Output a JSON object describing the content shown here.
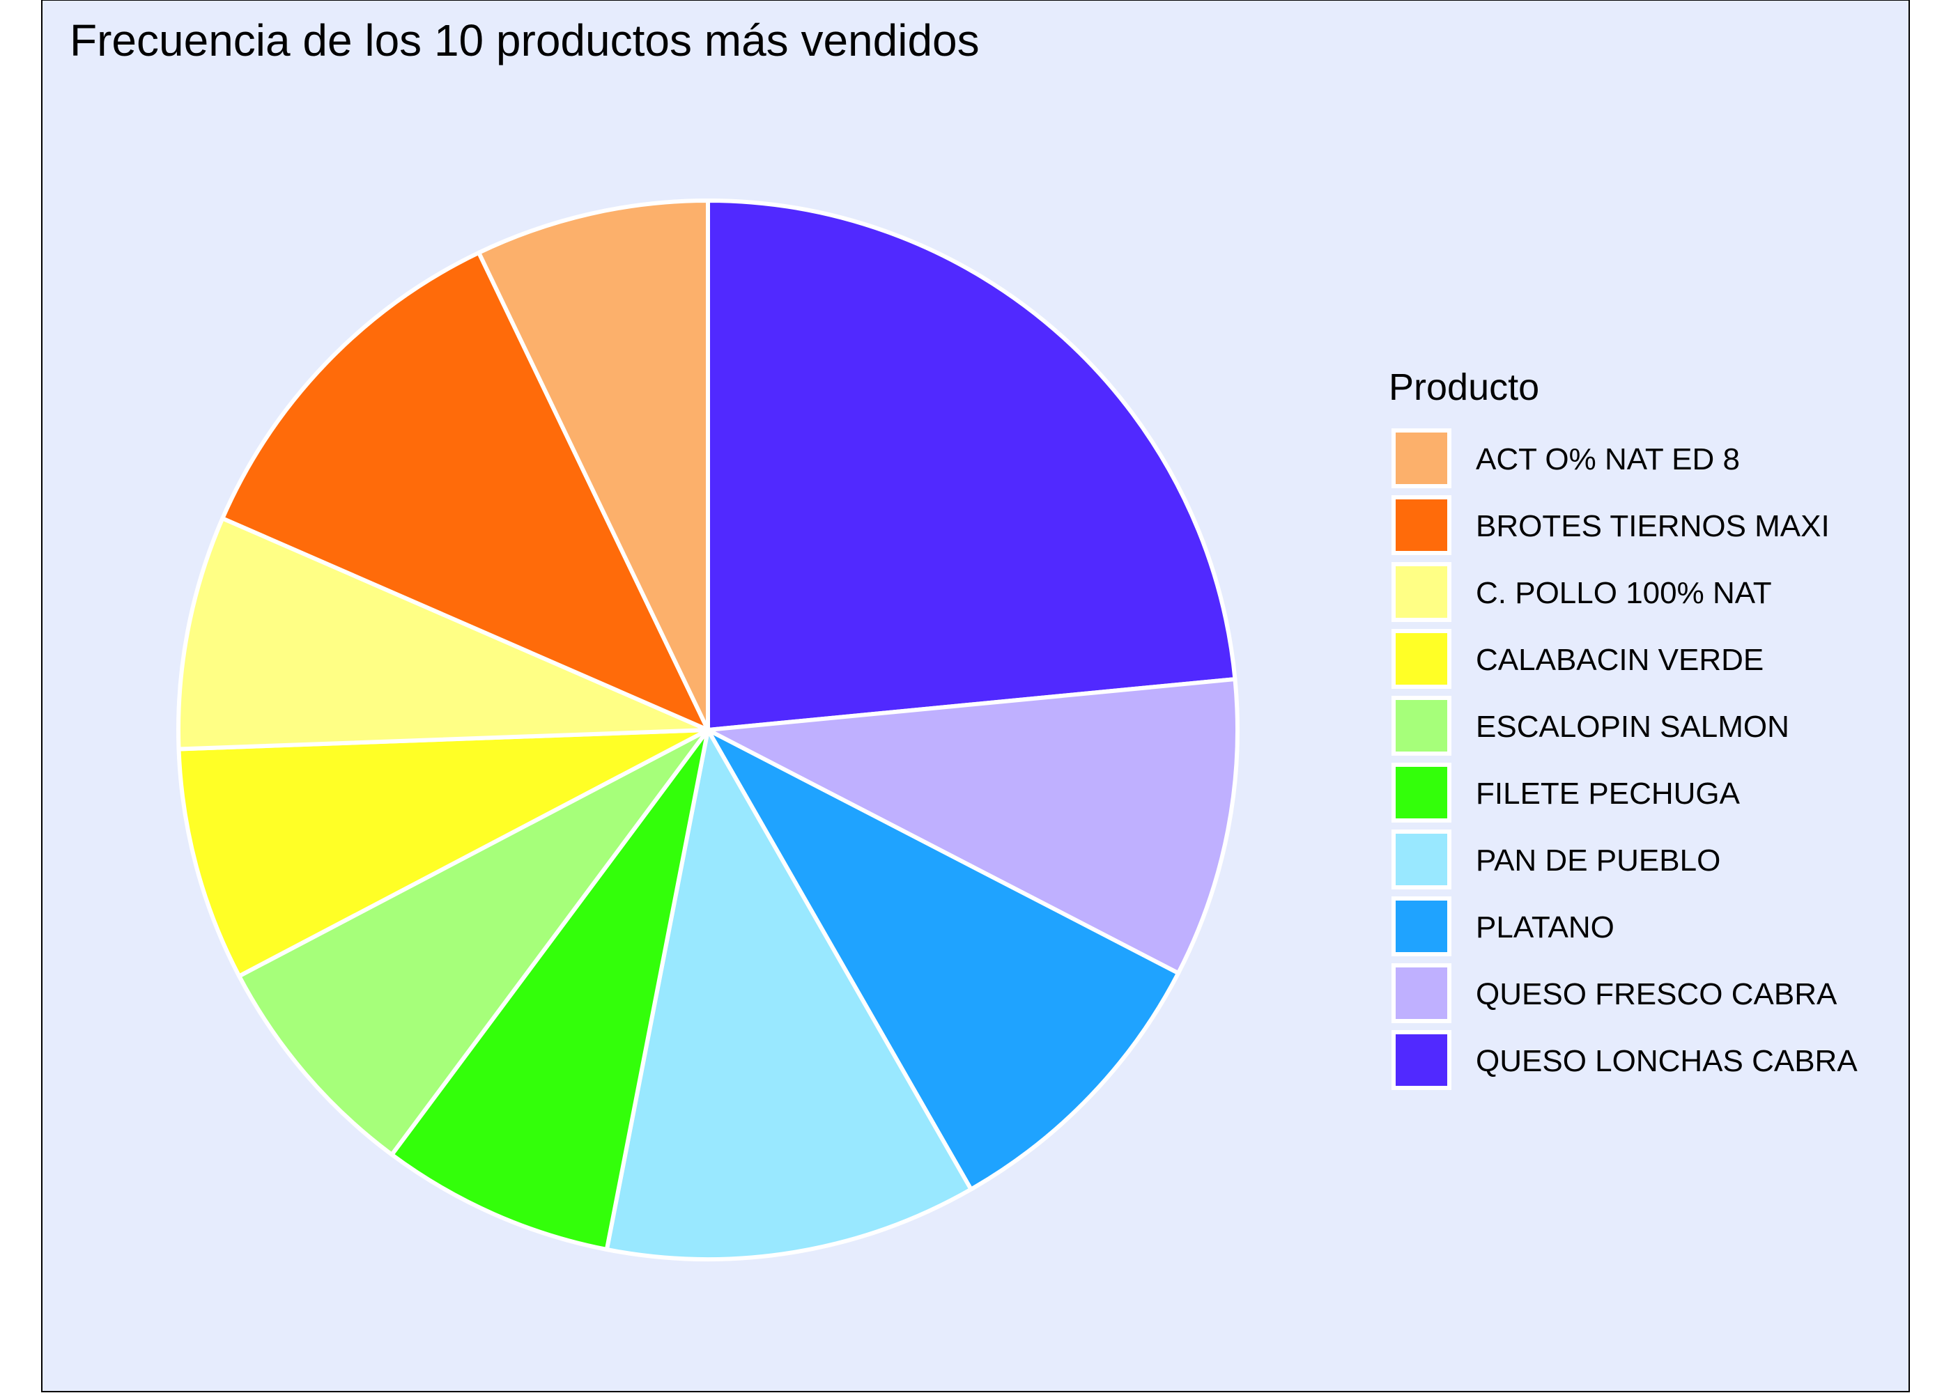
{
  "chart_data": {
    "type": "pie",
    "title": "Frecuencia de los 10 productos más vendidos",
    "legend_title": "Producto",
    "legend_position": "right",
    "direction": "clockwise",
    "start": "top",
    "background": "#e6ecfd",
    "slice_border": "#ffffff",
    "slices": [
      {
        "label": "QUESO LONCHAS CABRA",
        "value": 23.4,
        "color": "#5129ff"
      },
      {
        "label": "QUESO FRESCO CABRA",
        "value": 9.1,
        "color": "#bfb0ff"
      },
      {
        "label": "PLATANO",
        "value": 9.1,
        "color": "#1fa3ff"
      },
      {
        "label": "PAN DE PUEBLO",
        "value": 11.3,
        "color": "#99e8ff"
      },
      {
        "label": "FILETE PECHUGA",
        "value": 7.1,
        "color": "#33ff0a"
      },
      {
        "label": "ESCALOPIN SALMON",
        "value": 7.1,
        "color": "#a6ff7a"
      },
      {
        "label": "CALABACIN VERDE",
        "value": 7.1,
        "color": "#ffff26"
      },
      {
        "label": "C. POLLO 100% NAT",
        "value": 7.1,
        "color": "#ffff85"
      },
      {
        "label": "BROTES TIERNOS MAXI",
        "value": 11.3,
        "color": "#ff6b0a"
      },
      {
        "label": "ACT O% NAT ED 8",
        "value": 7.1,
        "color": "#fcb06b"
      }
    ],
    "legend_order": [
      "ACT O% NAT ED 8",
      "BROTES TIERNOS MAXI",
      "C. POLLO 100% NAT",
      "CALABACIN VERDE",
      "ESCALOPIN SALMON",
      "FILETE PECHUGA",
      "PAN DE PUEBLO",
      "PLATANO",
      "QUESO FRESCO CABRA",
      "QUESO LONCHAS CABRA"
    ]
  }
}
